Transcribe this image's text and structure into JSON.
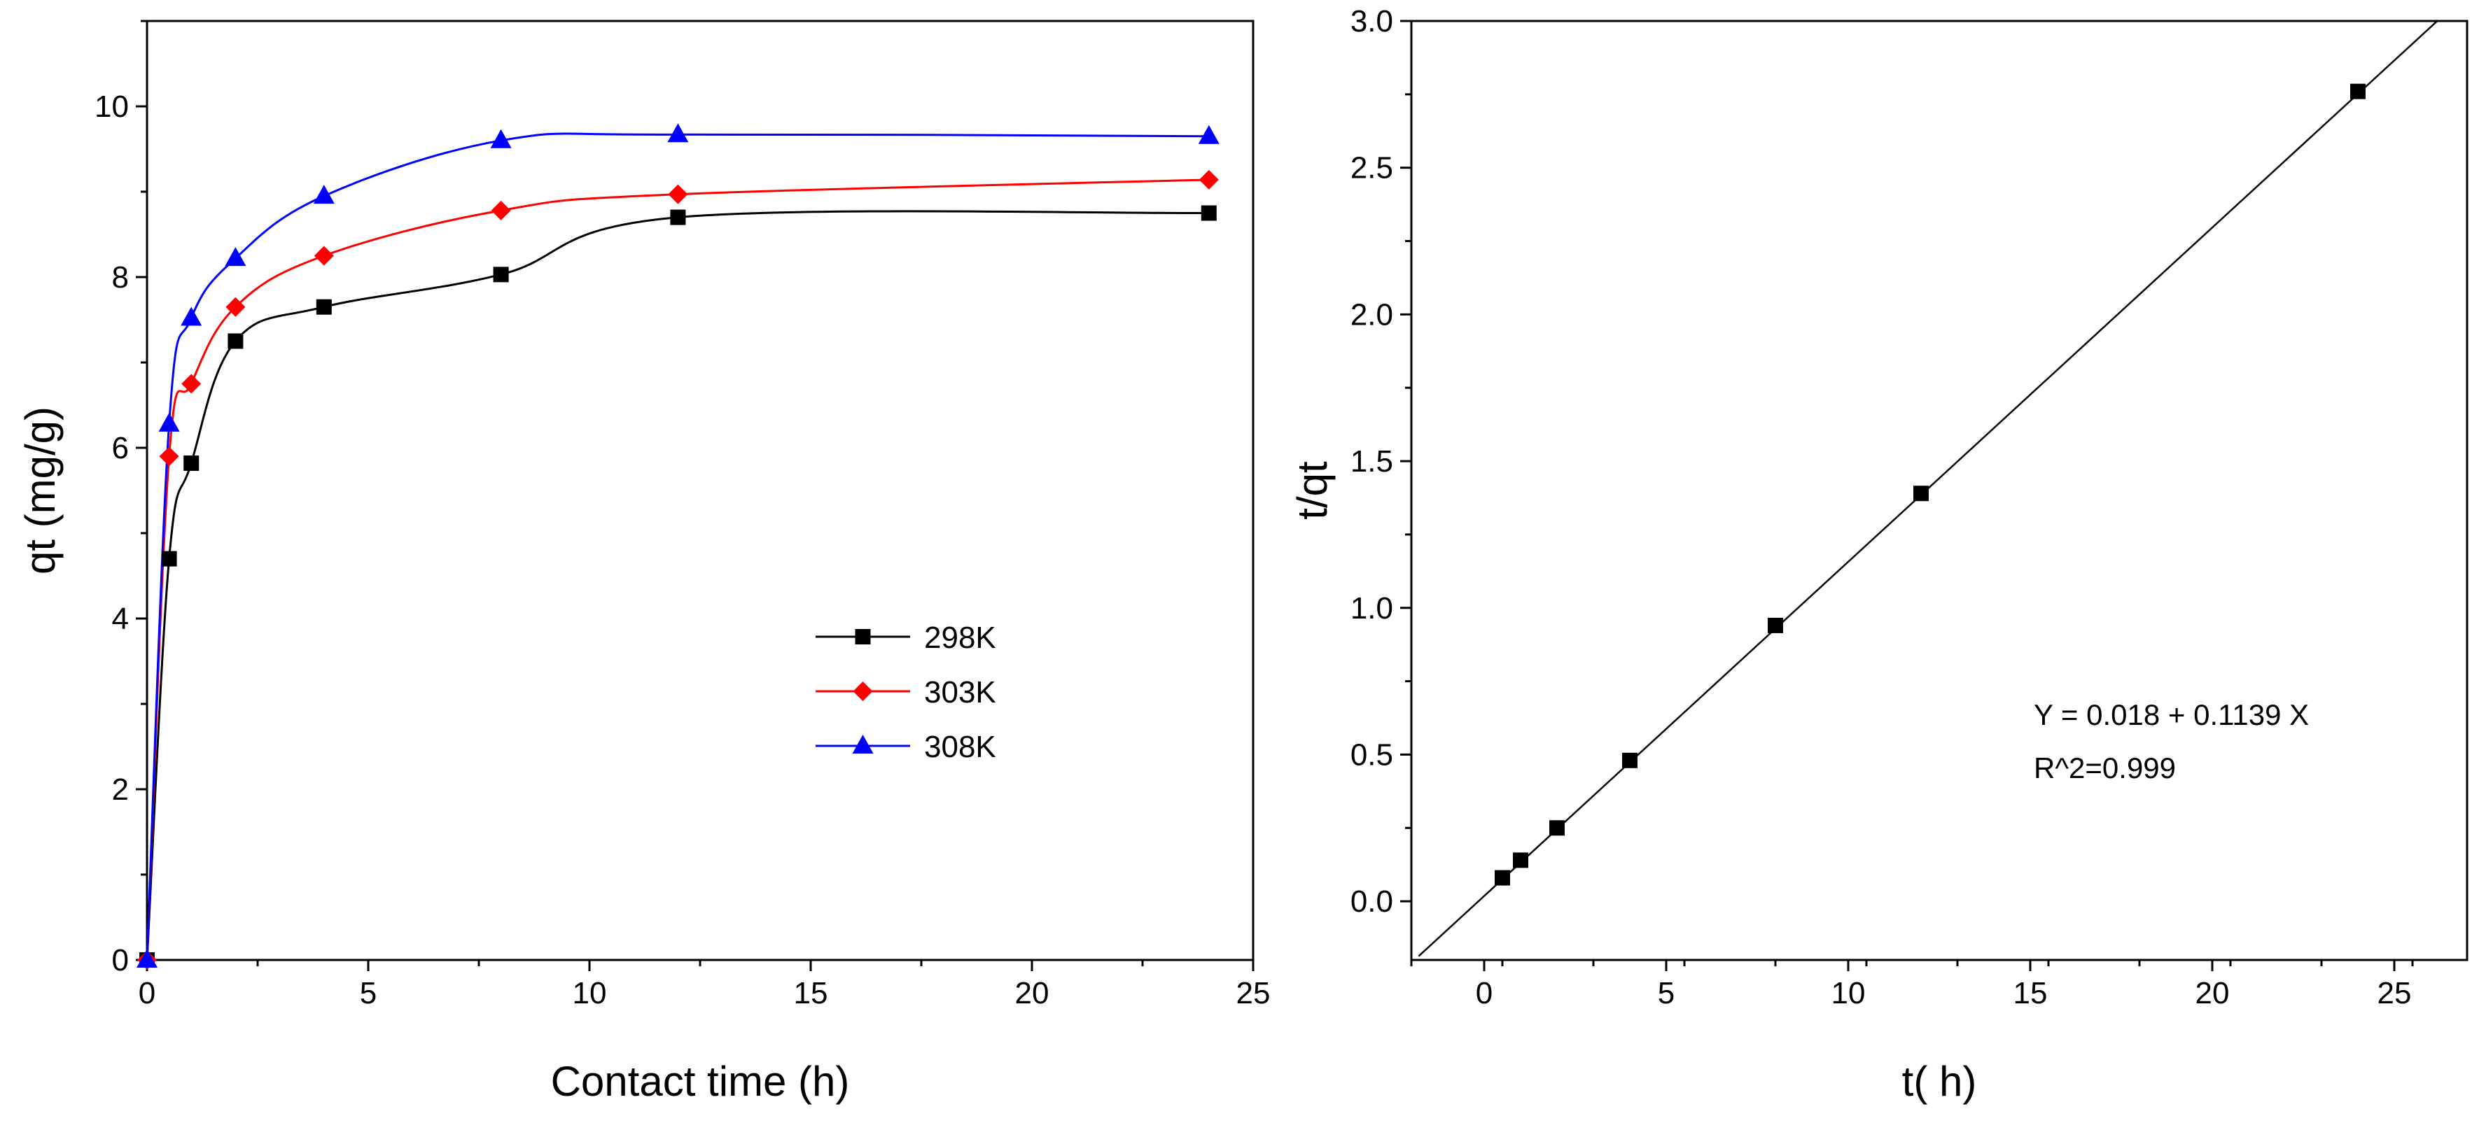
{
  "chart_data": [
    {
      "type": "line",
      "title": "",
      "xlabel": "Contact time (h)",
      "ylabel": "qt (mg/g)",
      "xlim": [
        0,
        25
      ],
      "ylim": [
        0,
        11
      ],
      "xticks": [
        0,
        5,
        10,
        15,
        20,
        25
      ],
      "yticks": [
        0,
        2,
        4,
        6,
        8,
        10
      ],
      "grid": false,
      "legend_position": "center-right",
      "x": [
        0,
        0.5,
        1,
        2,
        4,
        8,
        12,
        24
      ],
      "series": [
        {
          "name": "298K",
          "color": "#000000",
          "marker": "square",
          "values": [
            0,
            4.7,
            5.82,
            7.25,
            7.65,
            8.03,
            8.7,
            8.75
          ]
        },
        {
          "name": "303K",
          "color": "#ff0000",
          "marker": "diamond",
          "values": [
            0,
            5.9,
            6.75,
            7.65,
            8.25,
            8.78,
            8.97,
            9.14
          ]
        },
        {
          "name": "308K",
          "color": "#0000ff",
          "marker": "triangle",
          "values": [
            0,
            6.28,
            7.52,
            8.22,
            8.95,
            9.6,
            9.67,
            9.65
          ]
        }
      ]
    },
    {
      "type": "scatter",
      "title": "",
      "xlabel": "t(  h)",
      "ylabel": "t/qt",
      "xlim": [
        -2,
        27
      ],
      "ylim": [
        -0.2,
        3.0
      ],
      "xticks": [
        0,
        5,
        10,
        15,
        20,
        25
      ],
      "yticks": [
        0.0,
        0.5,
        1.0,
        1.5,
        2.0,
        2.5,
        3.0
      ],
      "ytick_labels": [
        "0.0",
        "0.5",
        "1.0",
        "1.5",
        "2.0",
        "2.5",
        "3.0"
      ],
      "grid": false,
      "points": {
        "x": [
          0.5,
          1,
          2,
          4,
          8,
          12,
          24
        ],
        "y": [
          0.08,
          0.14,
          0.25,
          0.48,
          0.94,
          1.39,
          2.76
        ]
      },
      "fit": {
        "intercept": 0.018,
        "slope": 0.1139,
        "x_range": [
          -1.8,
          26.2
        ]
      },
      "annotations": [
        "Y = 0.018 + 0.1139 X",
        "R^2=0.999"
      ]
    }
  ]
}
